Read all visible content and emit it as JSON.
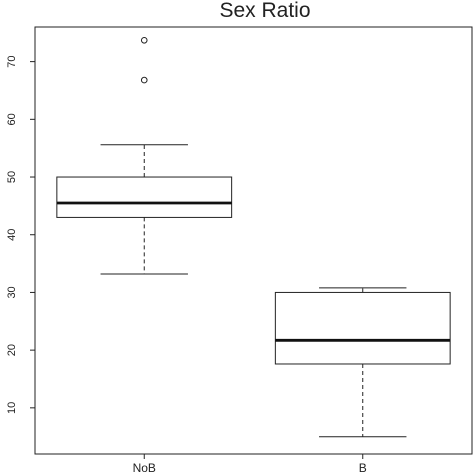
{
  "chart_data": {
    "type": "boxplot",
    "title": "Sex Ratio",
    "xlabel": "",
    "ylabel": "",
    "ylim": [
      2,
      76
    ],
    "yticks": [
      10,
      20,
      30,
      40,
      50,
      60,
      70
    ],
    "categories": [
      "NoB",
      "B"
    ],
    "boxes": [
      {
        "category": "NoB",
        "whisker_low": 33.2,
        "q1": 43.0,
        "median": 45.5,
        "q3": 50.0,
        "whisker_high": 55.6,
        "outliers": [
          66.8,
          73.7
        ]
      },
      {
        "category": "B",
        "whisker_low": 5.0,
        "q1": 17.6,
        "median": 21.7,
        "q3": 30.0,
        "whisker_high": 30.8,
        "outliers": []
      }
    ],
    "grid": false,
    "legend": "none",
    "colors": {
      "stroke": "#222222",
      "median": "#111111",
      "box_fill": "#ffffff"
    }
  }
}
